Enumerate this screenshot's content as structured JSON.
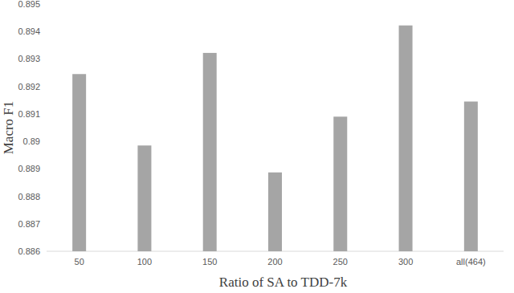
{
  "chart_data": {
    "type": "bar",
    "x_label": "Ratio of SA to TDD-7k",
    "y_label": "Macro F1",
    "categories": [
      "50",
      "100",
      "150",
      "200",
      "250",
      "300",
      "all(464)"
    ],
    "values": [
      0.89245,
      0.88985,
      0.89322,
      0.88887,
      0.8909,
      0.89422,
      0.89145
    ],
    "color": "#a5a5a5",
    "ylim": [
      0.886,
      0.895
    ],
    "yticks": [
      0.886,
      0.887,
      0.888,
      0.889,
      0.89,
      0.891,
      0.892,
      0.893,
      0.894,
      0.895
    ],
    "grid": false
  }
}
